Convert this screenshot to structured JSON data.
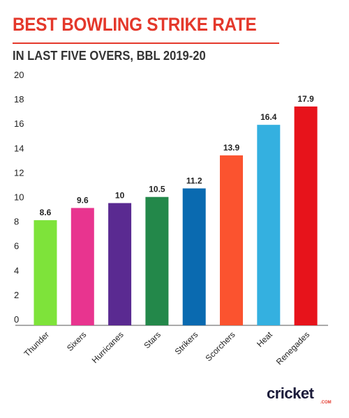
{
  "header": {
    "title": "BEST BOWLING STRIKE RATE",
    "subtitle": "IN LAST FIVE OVERS, BBL 2019-20"
  },
  "logo": {
    "main": "cricket",
    "sub": ".COM"
  },
  "colors": {
    "title": "#e4382b",
    "axis_text": "#222222"
  },
  "chart_data": {
    "type": "bar",
    "title": "BEST BOWLING STRIKE RATE",
    "subtitle": "IN LAST FIVE OVERS, BBL 2019-20",
    "xlabel": "",
    "ylabel": "",
    "ylim": [
      0,
      20
    ],
    "yticks": [
      0,
      2,
      4,
      6,
      8,
      10,
      12,
      14,
      16,
      18,
      20
    ],
    "grid": false,
    "categories": [
      "Thunder",
      "Sixers",
      "Hurricanes",
      "Stars",
      "Strikers",
      "Scorchers",
      "Heat",
      "Renegades"
    ],
    "values": [
      8.6,
      9.6,
      10,
      10.5,
      11.2,
      13.9,
      16.4,
      17.9
    ],
    "value_labels": [
      "8.6",
      "9.6",
      "10",
      "10.5",
      "11.2",
      "13.9",
      "16.4",
      "17.9"
    ],
    "bar_colors": [
      "#7ee33a",
      "#e8348f",
      "#5a2a91",
      "#23884a",
      "#0a6ab0",
      "#fb532f",
      "#34b0e0",
      "#e7131b"
    ]
  }
}
